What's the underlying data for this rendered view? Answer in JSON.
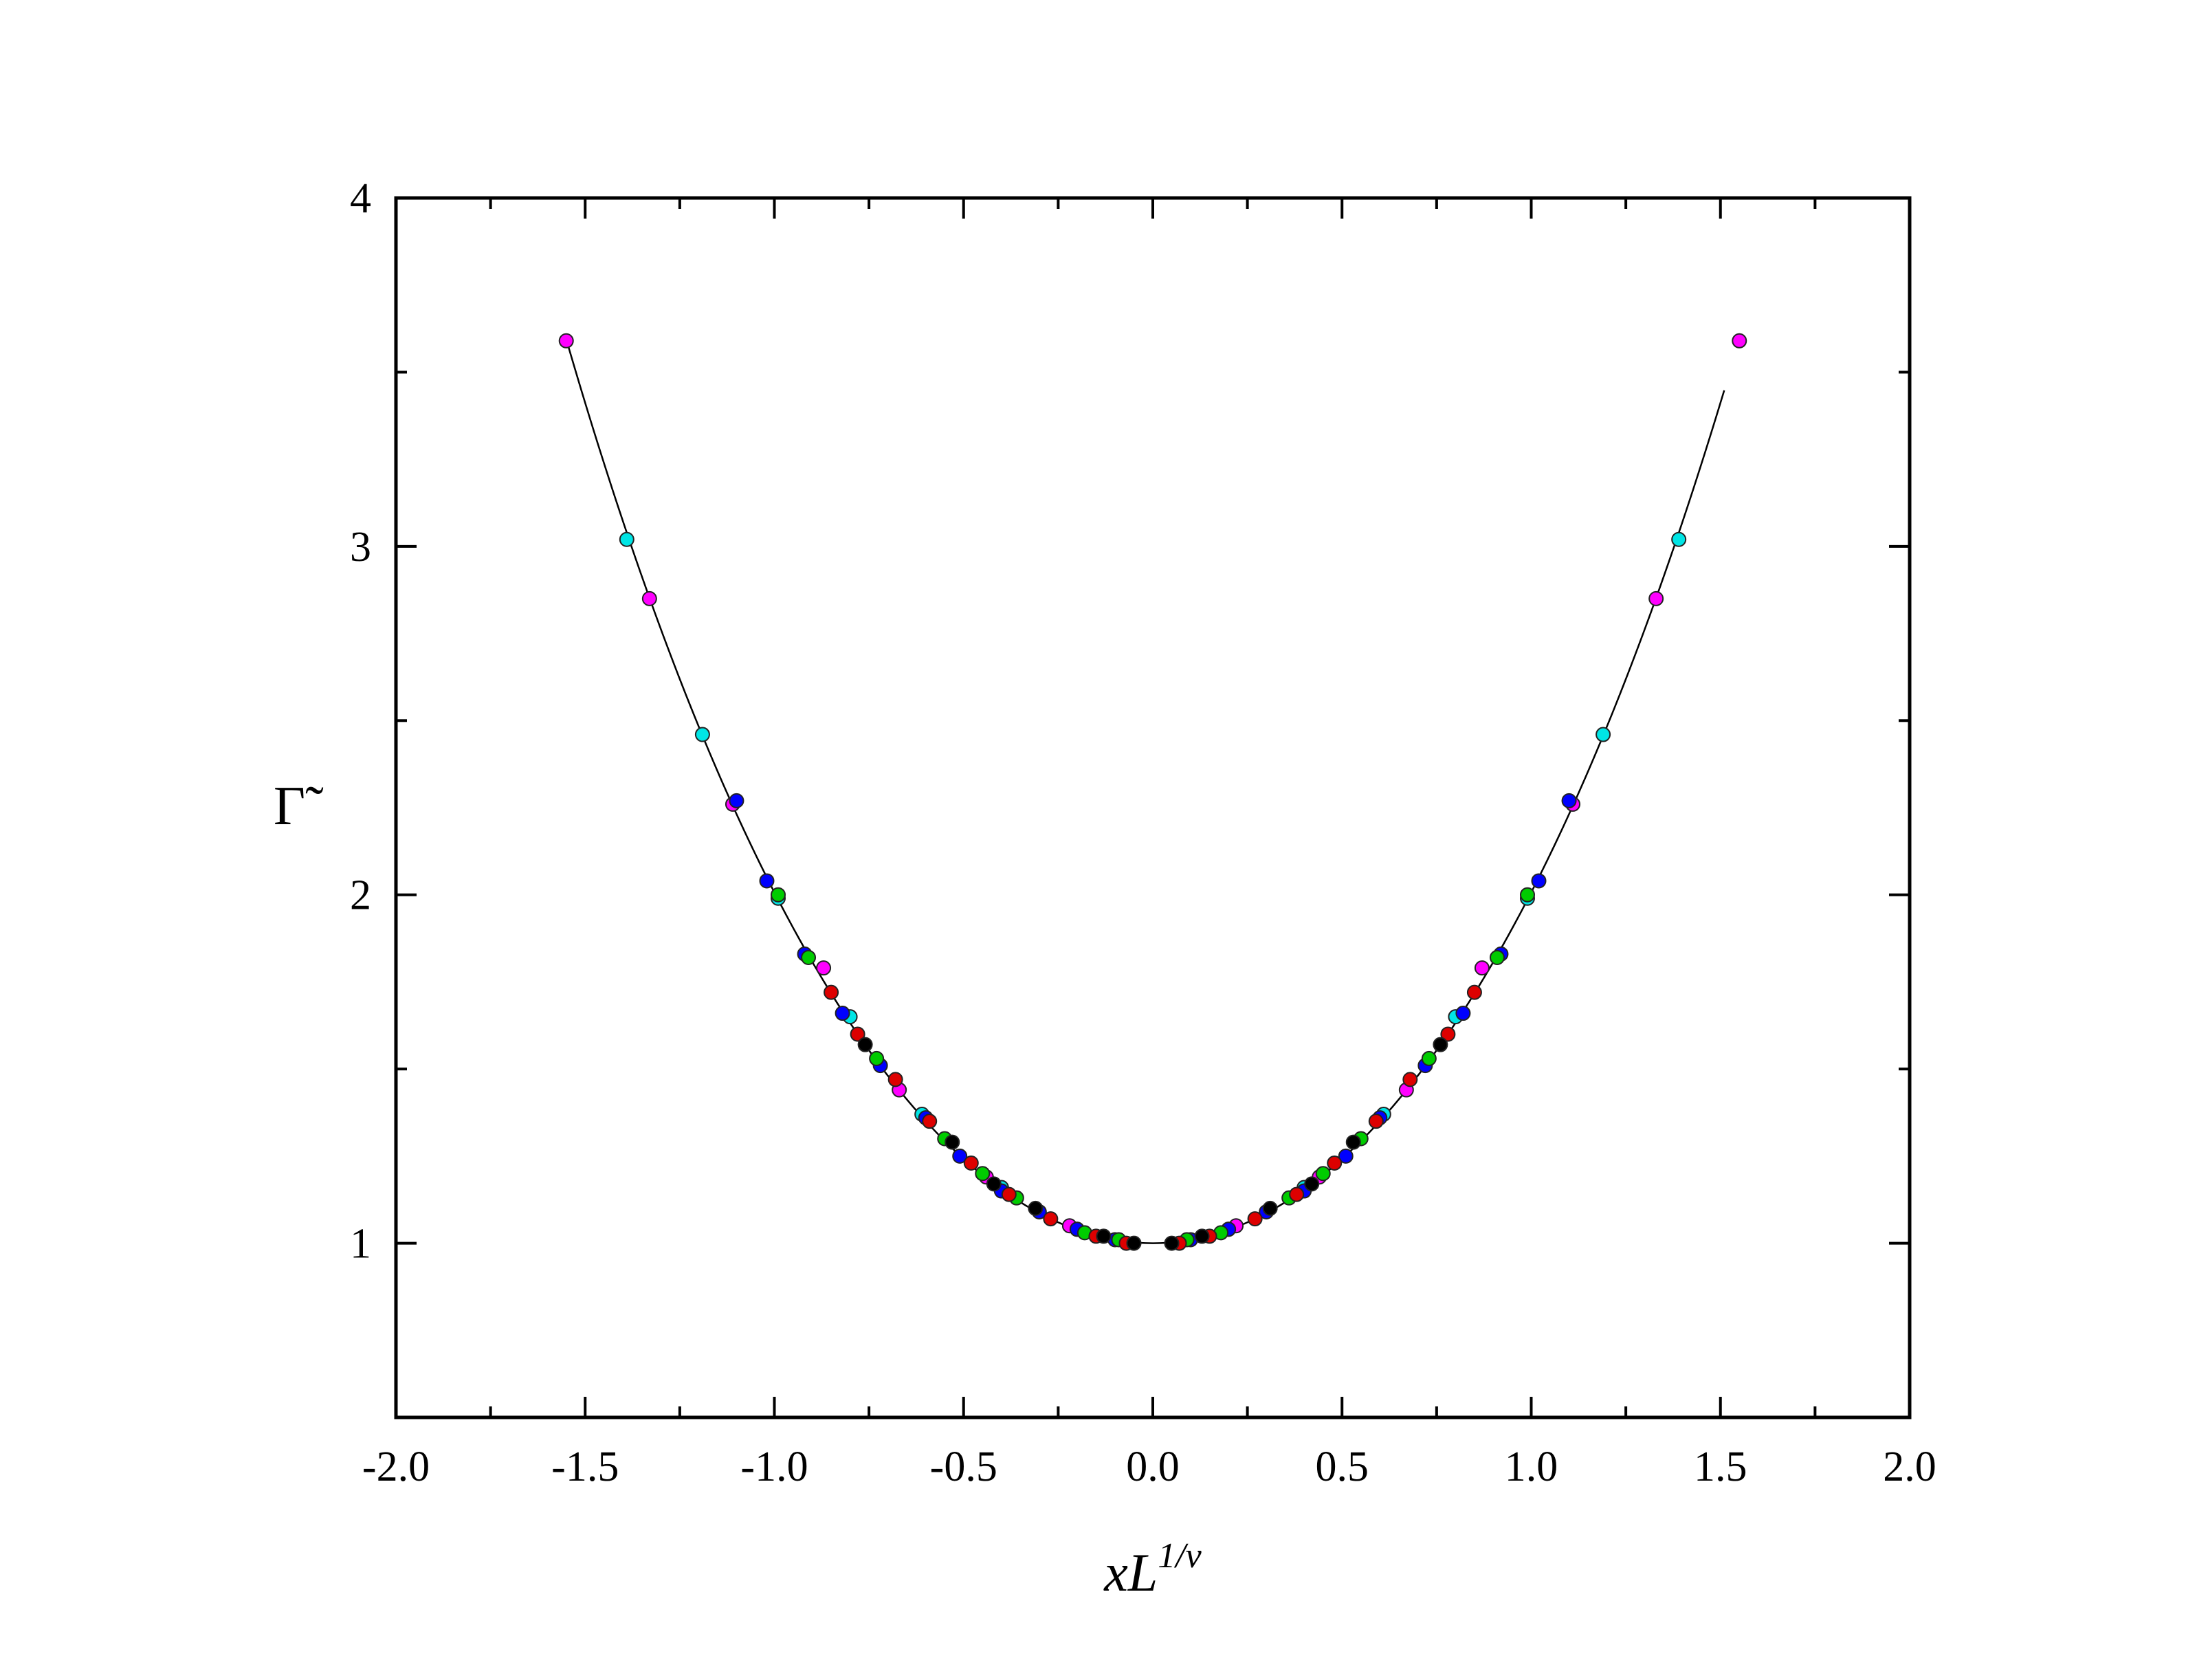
{
  "chart_data": {
    "type": "scatter",
    "title": "",
    "xlabel": {
      "base": "xL",
      "superscript": "1/ν"
    },
    "ylabel": "Γ̃",
    "xlim": [
      -2.0,
      2.0
    ],
    "ylim": [
      0.5,
      4.0
    ],
    "x_ticks": [
      "-2.0",
      "-1.5",
      "-1.0",
      "-0.5",
      "0.0",
      "0.5",
      "1.0",
      "1.5",
      "2.0"
    ],
    "y_ticks": [
      "1",
      "2",
      "3",
      "4"
    ],
    "grid": false,
    "legend": "none",
    "fit_curve": {
      "form": "y = 1 + a*x^2 + b*x^4",
      "a": 0.955,
      "b": 0.052,
      "x_range": [
        -1.55,
        1.51
      ],
      "color": "#000000"
    },
    "series": [
      {
        "color": "#ff00ff",
        "values": [
          [
            -1.55,
            3.59
          ],
          [
            -1.33,
            2.85
          ],
          [
            -1.11,
            2.26
          ],
          [
            -0.87,
            1.79
          ],
          [
            -0.67,
            1.44
          ],
          [
            -0.44,
            1.19
          ],
          [
            -0.22,
            1.05
          ],
          [
            0.22,
            1.05
          ],
          [
            0.44,
            1.19
          ],
          [
            0.67,
            1.44
          ],
          [
            0.87,
            1.79
          ],
          [
            1.11,
            2.26
          ],
          [
            1.33,
            2.85
          ],
          [
            1.55,
            3.59
          ]
        ]
      },
      {
        "color": "#00e5e5",
        "values": [
          [
            -1.39,
            3.02
          ],
          [
            -1.19,
            2.46
          ],
          [
            -0.99,
            1.99
          ],
          [
            -0.8,
            1.65
          ],
          [
            -0.61,
            1.37
          ],
          [
            -0.4,
            1.16
          ],
          [
            -0.2,
            1.04
          ],
          [
            0.2,
            1.04
          ],
          [
            0.4,
            1.16
          ],
          [
            0.61,
            1.37
          ],
          [
            0.8,
            1.65
          ],
          [
            0.99,
            1.99
          ],
          [
            1.19,
            2.46
          ],
          [
            1.39,
            3.02
          ]
        ]
      },
      {
        "color": "#0000ff",
        "values": [
          [
            -1.1,
            2.27
          ],
          [
            -1.02,
            2.04
          ],
          [
            -0.92,
            1.83
          ],
          [
            -0.82,
            1.66
          ],
          [
            -0.72,
            1.51
          ],
          [
            -0.6,
            1.36
          ],
          [
            -0.51,
            1.25
          ],
          [
            -0.4,
            1.15
          ],
          [
            -0.3,
            1.09
          ],
          [
            -0.2,
            1.04
          ],
          [
            -0.1,
            1.01
          ],
          [
            0.1,
            1.01
          ],
          [
            0.2,
            1.04
          ],
          [
            0.3,
            1.09
          ],
          [
            0.4,
            1.15
          ],
          [
            0.51,
            1.25
          ],
          [
            0.6,
            1.36
          ],
          [
            0.72,
            1.51
          ],
          [
            0.82,
            1.66
          ],
          [
            0.92,
            1.83
          ],
          [
            1.02,
            2.04
          ],
          [
            1.1,
            2.27
          ]
        ]
      },
      {
        "color": "#00cc00",
        "values": [
          [
            -0.99,
            2.0
          ],
          [
            -0.91,
            1.82
          ],
          [
            -0.73,
            1.53
          ],
          [
            -0.55,
            1.3
          ],
          [
            -0.45,
            1.2
          ],
          [
            -0.36,
            1.13
          ],
          [
            -0.18,
            1.03
          ],
          [
            -0.09,
            1.01
          ],
          [
            0.09,
            1.01
          ],
          [
            0.18,
            1.03
          ],
          [
            0.36,
            1.13
          ],
          [
            0.45,
            1.2
          ],
          [
            0.55,
            1.3
          ],
          [
            0.73,
            1.53
          ],
          [
            0.91,
            1.82
          ],
          [
            0.99,
            2.0
          ]
        ]
      },
      {
        "color": "#dd0000",
        "values": [
          [
            -0.85,
            1.72
          ],
          [
            -0.78,
            1.6
          ],
          [
            -0.68,
            1.47
          ],
          [
            -0.59,
            1.35
          ],
          [
            -0.48,
            1.23
          ],
          [
            -0.38,
            1.14
          ],
          [
            -0.27,
            1.07
          ],
          [
            -0.15,
            1.02
          ],
          [
            -0.07,
            1.0
          ],
          [
            0.07,
            1.0
          ],
          [
            0.15,
            1.02
          ],
          [
            0.27,
            1.07
          ],
          [
            0.38,
            1.14
          ],
          [
            0.48,
            1.23
          ],
          [
            0.59,
            1.35
          ],
          [
            0.68,
            1.47
          ],
          [
            0.78,
            1.6
          ],
          [
            0.85,
            1.72
          ]
        ]
      },
      {
        "color": "#000000",
        "values": [
          [
            -0.76,
            1.57
          ],
          [
            -0.53,
            1.29
          ],
          [
            -0.42,
            1.17
          ],
          [
            -0.31,
            1.1
          ],
          [
            -0.13,
            1.02
          ],
          [
            -0.05,
            1.0
          ],
          [
            0.05,
            1.0
          ],
          [
            0.13,
            1.02
          ],
          [
            0.31,
            1.1
          ],
          [
            0.42,
            1.17
          ],
          [
            0.53,
            1.29
          ],
          [
            0.76,
            1.57
          ]
        ]
      }
    ]
  }
}
